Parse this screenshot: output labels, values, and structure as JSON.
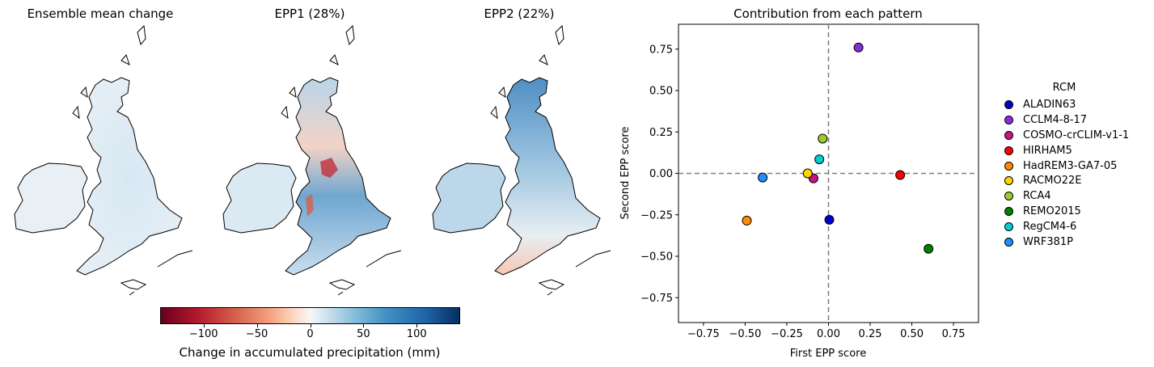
{
  "panels": {
    "mean_title": "Ensemble mean change",
    "epp1_title": "EPP1 (28%)",
    "epp2_title": "EPP2 (22%)"
  },
  "colorbar": {
    "label": "Change in accumulated precipitation (mm)",
    "range": [
      -140,
      140
    ],
    "ticks": [
      -100,
      -50,
      0,
      50,
      100
    ],
    "tick_labels": [
      "−100",
      "−50",
      "0",
      "50",
      "100"
    ],
    "colormap": "RdBu"
  },
  "chart_data": {
    "type": "scatter",
    "title": "Contribution from each pattern",
    "xlabel": "First EPP score",
    "ylabel": "Second EPP score",
    "xlim": [
      -0.9,
      0.9
    ],
    "ylim": [
      -0.9,
      0.9
    ],
    "xticks": [
      -0.75,
      -0.5,
      -0.25,
      0.0,
      0.25,
      0.5,
      0.75
    ],
    "yticks": [
      -0.75,
      -0.5,
      -0.25,
      0.0,
      0.25,
      0.5,
      0.75
    ],
    "xtick_labels": [
      "−0.75",
      "−0.50",
      "−0.25",
      "0.00",
      "0.25",
      "0.50",
      "0.75"
    ],
    "ytick_labels": [
      "−0.75",
      "−0.50",
      "−0.25",
      "0.00",
      "0.25",
      "0.50",
      "0.75"
    ],
    "grid": false,
    "reference_lines": {
      "x": 0,
      "y": 0
    },
    "legend_title": "RCM",
    "legend_position": "right",
    "points": [
      {
        "name": "ALADIN63",
        "x": 0.005,
        "y": -0.28,
        "color": "#0000cd"
      },
      {
        "name": "CCLM4-8-17",
        "x": 0.18,
        "y": 0.76,
        "color": "#8a2be2"
      },
      {
        "name": "COSMO-crCLIM-v1-1",
        "x": -0.09,
        "y": -0.03,
        "color": "#c71585"
      },
      {
        "name": "HIRHAM5",
        "x": 0.43,
        "y": -0.01,
        "color": "#ff0000"
      },
      {
        "name": "HadREM3-GA7-05",
        "x": -0.49,
        "y": -0.285,
        "color": "#ff8c00"
      },
      {
        "name": "RACMO22E",
        "x": -0.125,
        "y": 0.0,
        "color": "#ffd700"
      },
      {
        "name": "RCA4",
        "x": -0.035,
        "y": 0.21,
        "color": "#9acd32"
      },
      {
        "name": "REMO2015",
        "x": 0.6,
        "y": -0.455,
        "color": "#008000"
      },
      {
        "name": "RegCM4-6",
        "x": -0.055,
        "y": 0.085,
        "color": "#00ced1"
      },
      {
        "name": "WRF381P",
        "x": -0.395,
        "y": -0.025,
        "color": "#1e90ff"
      }
    ]
  }
}
